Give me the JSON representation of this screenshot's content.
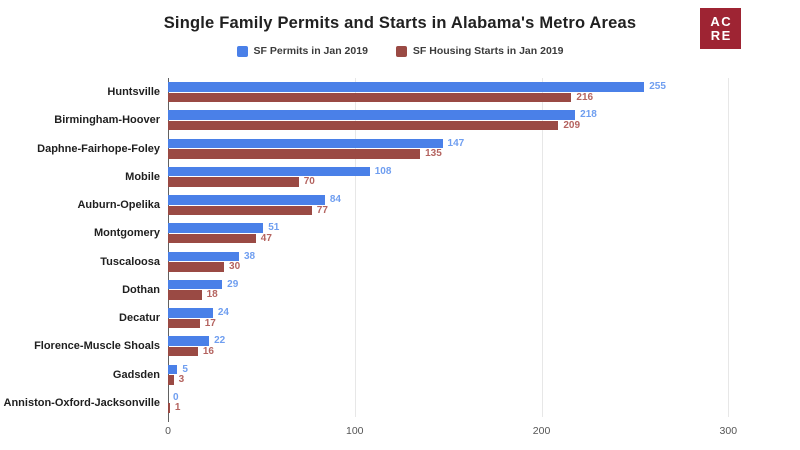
{
  "header": {
    "title": "Single Family Permits and Starts in Alabama's Metro Areas"
  },
  "logo": {
    "line1": "AC",
    "line2": "RE",
    "bg": "#9e2433",
    "fg": "#ffffff"
  },
  "colors": {
    "permits_bar": "#4a80e8",
    "starts_bar": "#9a4a44",
    "permits_value_label": "#6f9ef0",
    "starts_value_label": "#b4635f",
    "gridline": "#e7e7e7",
    "axis_line": "#616161",
    "tick_text": "#555555",
    "category_text": "#1f1f1f"
  },
  "chart_data": {
    "type": "bar",
    "orientation": "horizontal",
    "title": "Single Family Permits and Starts in Alabama's Metro Areas",
    "categories": [
      "Huntsville",
      "Birmingham-Hoover",
      "Daphne-Fairhope-Foley",
      "Mobile",
      "Auburn-Opelika",
      "Montgomery",
      "Tuscaloosa",
      "Dothan",
      "Decatur",
      "Florence-Muscle Shoals",
      "Gadsden",
      "Anniston-Oxford-Jacksonville"
    ],
    "series": [
      {
        "name": "SF Permits in Jan 2019",
        "color": "#4a80e8",
        "label_color": "#6f9ef0",
        "values": [
          255,
          218,
          147,
          108,
          84,
          51,
          38,
          29,
          24,
          22,
          5,
          0
        ]
      },
      {
        "name": "SF Housing Starts in Jan 2019",
        "color": "#9a4a44",
        "label_color": "#b4635f",
        "values": [
          216,
          209,
          135,
          70,
          77,
          47,
          30,
          18,
          17,
          16,
          3,
          1
        ]
      }
    ],
    "x_ticks": [
      0,
      100,
      200,
      300
    ],
    "xlim": [
      0,
      325
    ],
    "grid": true,
    "legend_position": "top",
    "value_labels": true
  }
}
